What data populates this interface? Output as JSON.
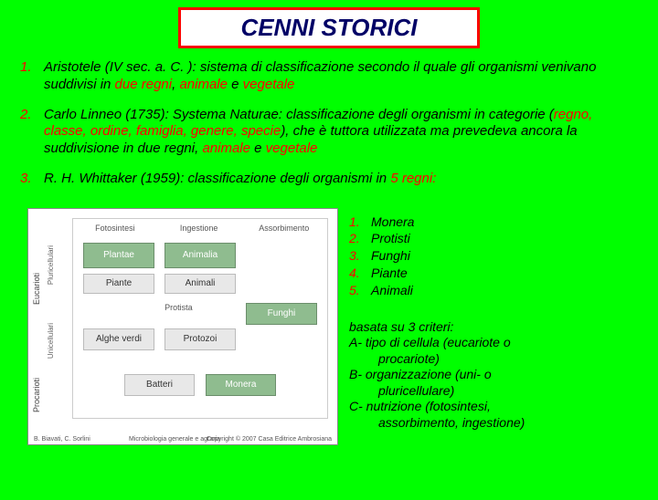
{
  "title": "CENNI STORICI",
  "items": [
    {
      "num": "1.",
      "segments": [
        {
          "t": "Aristotele (IV sec. a. C. ): sistema di classificazione secondo il quale gli organismi venivano suddivisi in ",
          "c": "#000"
        },
        {
          "t": "due regni",
          "c": "#ff0000"
        },
        {
          "t": ", ",
          "c": "#000"
        },
        {
          "t": "animale",
          "c": "#ff0000"
        },
        {
          "t": " e ",
          "c": "#000"
        },
        {
          "t": "vegetale",
          "c": "#ff0000"
        }
      ]
    },
    {
      "num": "2.",
      "segments": [
        {
          "t": "Carlo Linneo (1735): Systema Naturae: classificazione degli organismi in categorie (",
          "c": "#000"
        },
        {
          "t": "regno, classe, ordine, famiglia, genere, specie",
          "c": "#ff0000"
        },
        {
          "t": "), che è tuttora utilizzata ma prevedeva ancora la  suddivisione in due regni, ",
          "c": "#000"
        },
        {
          "t": "animale",
          "c": "#ff0000"
        },
        {
          "t": " e ",
          "c": "#000"
        },
        {
          "t": "vegetale",
          "c": "#ff0000"
        }
      ]
    },
    {
      "num": "3.",
      "segments": [
        {
          "t": "R. H. Whittaker (1959): classificazione degli organismi in ",
          "c": "#000"
        },
        {
          "t": "5 regni:",
          "c": "#ff0000"
        }
      ]
    }
  ],
  "kingdoms": [
    {
      "n": "1.",
      "name": "Monera"
    },
    {
      "n": "2.",
      "name": "Protisti"
    },
    {
      "n": "3.",
      "name": "Funghi"
    },
    {
      "n": "4.",
      "name": "Piante"
    },
    {
      "n": "5.",
      "name": "Animali"
    }
  ],
  "criteria_head": "basata su 3 criteri:",
  "criteria": [
    {
      "label": "A- tipo di cellula (eucariote o",
      "indent": "procariote)"
    },
    {
      "label": "B- organizzazione (uni- o",
      "indent": "pluricellulare)"
    },
    {
      "label": "C- nutrizione (fotosintesi,",
      "indent": "assorbimento, ingestione)"
    }
  ],
  "diagram": {
    "cols": [
      "Fotosintesi",
      "Ingestione",
      "Assorbimento"
    ],
    "side_left": "Eucarioti",
    "side_left2": "Procarioti",
    "row_labels": [
      "Pluricellulari",
      "Unicellulari"
    ],
    "top_cells": [
      "Plantae",
      "Animalia",
      "Funghi"
    ],
    "top_sub": [
      "Piante",
      "Animali"
    ],
    "mid_cells": [
      "Alghe verdi",
      "Protozoi"
    ],
    "mid_right": "Protista",
    "bot_cells": [
      "Batteri",
      "Monera"
    ],
    "credit_left": "B. Biavati, C. Sorlini",
    "credit_mid": "Microbiologia generale e agraria",
    "credit_right": "Copyright © 2007 Casa Editrice Ambrosiana"
  }
}
